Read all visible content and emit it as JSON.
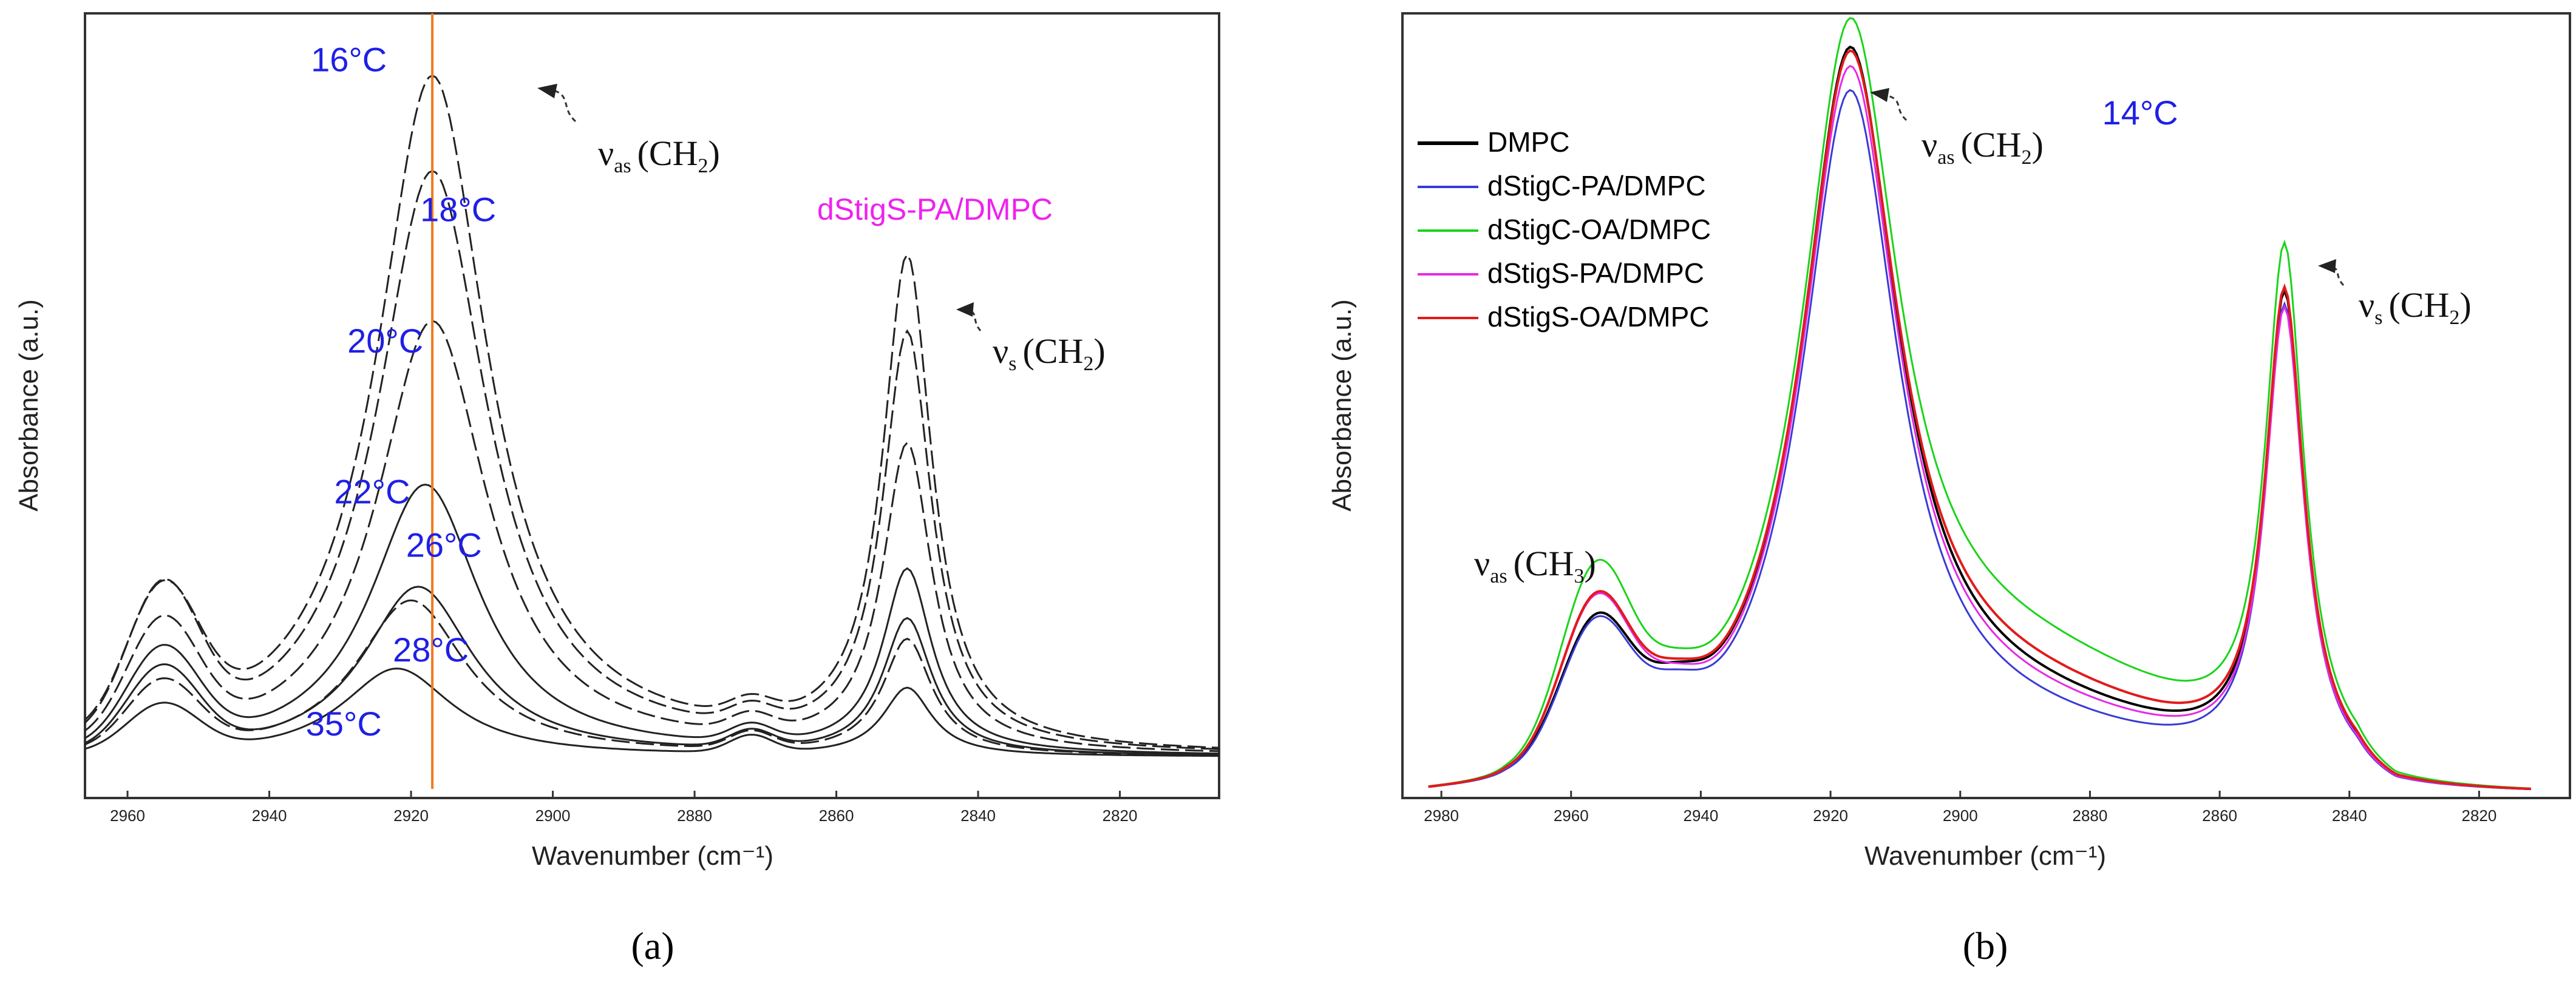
{
  "chart_data": [
    {
      "panel": "(a)",
      "type": "line",
      "title": "dStigS-PA/DMPC",
      "xlabel": "Wavenumber (cm⁻¹)",
      "ylabel": "Absorbance (a.u.)",
      "xlim": [
        2966,
        2806
      ],
      "ylim": [
        0,
        1.05
      ],
      "x_direction": "decreasing",
      "xticks": [
        2960,
        2940,
        2920,
        2900,
        2880,
        2860,
        2840,
        2820
      ],
      "reference_line_x": 2917,
      "reference_line_color": "#f07b1e",
      "annotations": {
        "nu_as_label": "ν",
        "nu_as_sub": "as",
        "nu_as_group": "(CH",
        "nu_as_group_sub": "2",
        "nu_as_group_close": ")",
        "nu_s_label": "ν",
        "nu_s_sub": "s",
        "nu_s_group": "(CH",
        "nu_s_group_sub": "2",
        "nu_s_group_close": ")"
      },
      "series": [
        {
          "name": "16°C",
          "label": "16°C",
          "dashed": true,
          "peak_as": 1.0,
          "x_as": 2917,
          "peak_s": 0.72,
          "shoulder": 0.2
        },
        {
          "name": "18°C",
          "label": "18°C",
          "dashed": true,
          "peak_as": 0.86,
          "x_as": 2917,
          "peak_s": 0.61,
          "shoulder": 0.21
        },
        {
          "name": "20°C",
          "label": "20°C",
          "dashed": true,
          "peak_as": 0.64,
          "x_as": 2917,
          "peak_s": 0.45,
          "shoulder": 0.17
        },
        {
          "name": "22°C",
          "label": "22°C",
          "dashed": false,
          "peak_as": 0.4,
          "x_as": 2918,
          "peak_s": 0.27,
          "shoulder": 0.14
        },
        {
          "name": "26°C",
          "label": "26°C",
          "dashed": false,
          "peak_as": 0.25,
          "x_as": 2919,
          "peak_s": 0.2,
          "shoulder": 0.12
        },
        {
          "name": "28°C",
          "label": "28°C",
          "dashed": true,
          "peak_as": 0.23,
          "x_as": 2920,
          "peak_s": 0.17,
          "shoulder": 0.1
        },
        {
          "name": "35°C",
          "label": "35°C",
          "dashed": false,
          "peak_as": 0.13,
          "x_as": 2922,
          "peak_s": 0.1,
          "shoulder": 0.07
        }
      ],
      "label_color": "#1f1fe6",
      "title_color": "#ee22ee"
    },
    {
      "panel": "(b)",
      "type": "line",
      "title": "14°C",
      "xlabel": "Wavenumber (cm⁻¹)",
      "ylabel": "Absorbance (a.u.)",
      "xlim": [
        2986,
        2806
      ],
      "ylim": [
        0,
        1.05
      ],
      "x_direction": "decreasing",
      "xticks": [
        2980,
        2960,
        2940,
        2920,
        2900,
        2880,
        2860,
        2840,
        2820
      ],
      "annotations": {
        "nu_as_label": "ν",
        "nu_as_sub": "as",
        "nu_as_group": "(CH",
        "nu_as_group_sub": "2",
        "nu_as_group_close": ")",
        "nu_s_label": "ν",
        "nu_s_sub": "s",
        "nu_s_group": "(CH",
        "nu_s_group_sub": "2",
        "nu_s_group_close": ")",
        "ch3_label": "ν",
        "ch3_sub": "as",
        "ch3_group": "(CH",
        "ch3_group_sub": "3",
        "ch3_group_close": ")"
      },
      "series": [
        {
          "name": "DMPC",
          "color": "#000000",
          "peak_as": 1.0,
          "peak_s": 0.68,
          "ch3": 0.2,
          "baseline": 0.1
        },
        {
          "name": "dStigC-PA/DMPC",
          "color": "#3a3ad6",
          "peak_as": 0.96,
          "peak_s": 0.67,
          "ch3": 0.2,
          "baseline": 0.07
        },
        {
          "name": "dStigC-OA/DMPC",
          "color": "#19d419",
          "peak_as": 0.99,
          "peak_s": 0.73,
          "ch3": 0.27,
          "baseline": 0.17
        },
        {
          "name": "dStigS-PA/DMPC",
          "color": "#e62ae6",
          "peak_as": 0.98,
          "peak_s": 0.66,
          "ch3": 0.23,
          "baseline": 0.09
        },
        {
          "name": "dStigS-OA/DMPC",
          "color": "#e21b1b",
          "peak_as": 0.98,
          "peak_s": 0.68,
          "ch3": 0.23,
          "baseline": 0.12
        }
      ]
    }
  ]
}
